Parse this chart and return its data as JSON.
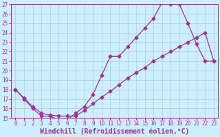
{
  "xlabel": "Windchill (Refroidissement éolien,°C)",
  "bg_color": "#cceeff",
  "grid_color": "#aacccc",
  "line_color": "#993399",
  "xlim": [
    -0.5,
    23.5
  ],
  "ylim": [
    15,
    27
  ],
  "xticks": [
    0,
    1,
    2,
    3,
    4,
    5,
    6,
    7,
    8,
    9,
    10,
    11,
    12,
    13,
    14,
    15,
    16,
    17,
    18,
    19,
    20,
    21,
    22,
    23
  ],
  "yticks": [
    15,
    16,
    17,
    18,
    19,
    20,
    21,
    22,
    23,
    24,
    25,
    26,
    27
  ],
  "line1_x": [
    0,
    1,
    2,
    3,
    4,
    5,
    6,
    7,
    8,
    9,
    10,
    11,
    12,
    13,
    14,
    15,
    16,
    17,
    18,
    19,
    20,
    21,
    22,
    23
  ],
  "line1_y": [
    18,
    17,
    16,
    15.2,
    15.2,
    14.8,
    14.8,
    15.5,
    16.2,
    17.5,
    19.5,
    21.5,
    21.5,
    22.5,
    23.5,
    24.5,
    25.5,
    27.2,
    27,
    27,
    25,
    22.8,
    21,
    21
  ],
  "line2_x": [
    0,
    1,
    2,
    3,
    4,
    5,
    6,
    7,
    8,
    9,
    10,
    11,
    12,
    13,
    14,
    15,
    16,
    17,
    18,
    19,
    20,
    21,
    22,
    23
  ],
  "line2_y": [
    18,
    17.1,
    16.2,
    15.5,
    15.3,
    15.2,
    15.2,
    15.2,
    15.8,
    16.5,
    17.2,
    17.8,
    18.5,
    19.2,
    19.8,
    20.3,
    21,
    21.5,
    22,
    22.5,
    23,
    23.5,
    24,
    21
  ],
  "marker_size": 2.5,
  "linewidth": 0.9,
  "xlabel_fontsize": 7,
  "tick_fontsize": 5.5
}
